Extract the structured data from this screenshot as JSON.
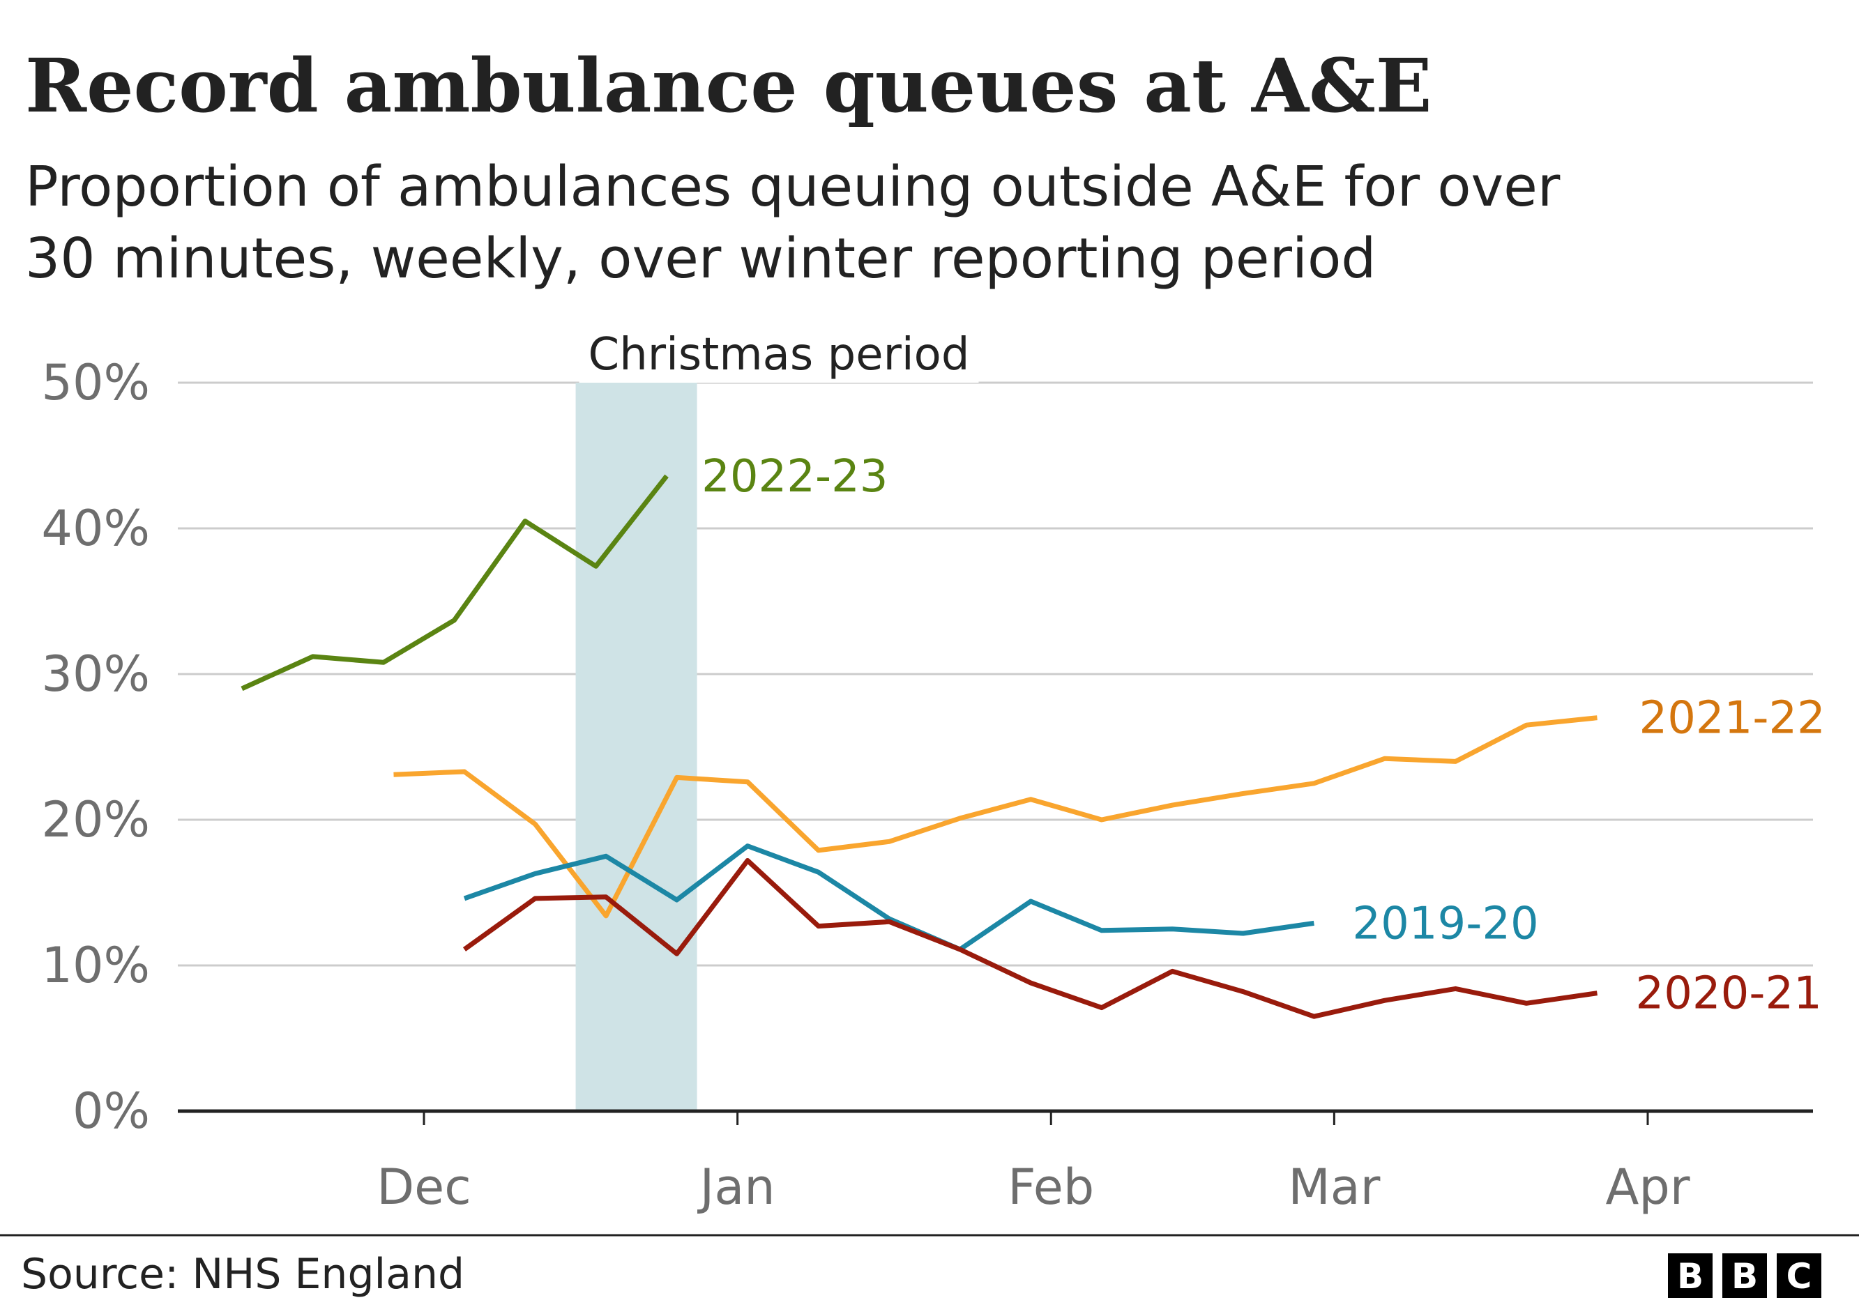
{
  "title": "Record ambulance queues at A&E",
  "subtitle_lines": [
    "Proportion of ambulances queuing outside A&E for over",
    "30 minutes, weekly, over winter reporting period"
  ],
  "source": "Source: NHS England",
  "logo": {
    "letters": [
      "B",
      "B",
      "C"
    ],
    "color": "#000000"
  },
  "chart_data": {
    "type": "line",
    "title": "Record ambulance queues at A&E",
    "subtitle": "Proportion of ambulances queuing outside A&E for over 30 minutes, weekly, over winter reporting period",
    "x_axis": {
      "type": "date",
      "tick_labels": [
        "Dec",
        "Jan",
        "Feb",
        "Mar",
        "Apr"
      ],
      "tick_values": [
        "12-01",
        "01-01",
        "02-01",
        "03-01",
        "04-01"
      ],
      "range": [
        "11-07",
        "04-18"
      ]
    },
    "y_axis": {
      "range": [
        0,
        50
      ],
      "ticks": [
        0,
        10,
        20,
        30,
        40,
        50
      ],
      "tick_labels": [
        "0%",
        "10%",
        "20%",
        "30%",
        "40%",
        "50%"
      ],
      "unit": "%"
    },
    "grid": true,
    "shaded_region": {
      "label": "Christmas period",
      "start": "12-16",
      "end": "12-28",
      "color": "#cfe3e6"
    },
    "series": [
      {
        "name": "2022-23",
        "color": "#5a8412",
        "label_color": "#5a8412",
        "points": [
          {
            "x": "11-13",
            "y": 29.0
          },
          {
            "x": "11-20",
            "y": 31.2
          },
          {
            "x": "11-27",
            "y": 30.8
          },
          {
            "x": "12-04",
            "y": 33.7
          },
          {
            "x": "12-11",
            "y": 40.5
          },
          {
            "x": "12-18",
            "y": 37.4
          },
          {
            "x": "12-25",
            "y": 43.6
          }
        ]
      },
      {
        "name": "2021-22",
        "color": "#f9a52e",
        "label_color": "#d4760e",
        "points": [
          {
            "x": "11-28",
            "y": 23.1
          },
          {
            "x": "12-05",
            "y": 23.3
          },
          {
            "x": "12-12",
            "y": 19.7
          },
          {
            "x": "12-19",
            "y": 13.4
          },
          {
            "x": "12-26",
            "y": 22.9
          },
          {
            "x": "01-02",
            "y": 22.6
          },
          {
            "x": "01-09",
            "y": 17.9
          },
          {
            "x": "01-16",
            "y": 18.5
          },
          {
            "x": "01-23",
            "y": 20.1
          },
          {
            "x": "01-30",
            "y": 21.4
          },
          {
            "x": "02-06",
            "y": 20.0
          },
          {
            "x": "02-13",
            "y": 21.0
          },
          {
            "x": "02-20",
            "y": 21.8
          },
          {
            "x": "02-27",
            "y": 22.5
          },
          {
            "x": "03-06",
            "y": 24.2
          },
          {
            "x": "03-13",
            "y": 24.0
          },
          {
            "x": "03-20",
            "y": 26.5
          },
          {
            "x": "03-27",
            "y": 27.0
          }
        ]
      },
      {
        "name": "2019-20",
        "color": "#1c87a5",
        "label_color": "#1c87a5",
        "points": [
          {
            "x": "12-05",
            "y": 14.6
          },
          {
            "x": "12-12",
            "y": 16.3
          },
          {
            "x": "12-19",
            "y": 17.5
          },
          {
            "x": "12-26",
            "y": 14.5
          },
          {
            "x": "01-02",
            "y": 18.2
          },
          {
            "x": "01-09",
            "y": 16.4
          },
          {
            "x": "01-16",
            "y": 13.2
          },
          {
            "x": "01-23",
            "y": 11.1
          },
          {
            "x": "01-30",
            "y": 14.4
          },
          {
            "x": "02-06",
            "y": 12.4
          },
          {
            "x": "02-13",
            "y": 12.5
          },
          {
            "x": "02-20",
            "y": 12.2
          },
          {
            "x": "02-27",
            "y": 12.9
          }
        ]
      },
      {
        "name": "2020-21",
        "color": "#991b0c",
        "label_color": "#991b0c",
        "points": [
          {
            "x": "12-05",
            "y": 11.1
          },
          {
            "x": "12-12",
            "y": 14.6
          },
          {
            "x": "12-19",
            "y": 14.7
          },
          {
            "x": "12-26",
            "y": 10.8
          },
          {
            "x": "01-02",
            "y": 17.2
          },
          {
            "x": "01-09",
            "y": 12.7
          },
          {
            "x": "01-16",
            "y": 13.0
          },
          {
            "x": "01-23",
            "y": 11.1
          },
          {
            "x": "01-30",
            "y": 8.8
          },
          {
            "x": "02-06",
            "y": 7.1
          },
          {
            "x": "02-13",
            "y": 9.6
          },
          {
            "x": "02-20",
            "y": 8.2
          },
          {
            "x": "02-27",
            "y": 6.5
          },
          {
            "x": "03-06",
            "y": 7.6
          },
          {
            "x": "03-13",
            "y": 8.4
          },
          {
            "x": "03-20",
            "y": 7.4
          },
          {
            "x": "03-27",
            "y": 8.1
          }
        ]
      }
    ]
  }
}
